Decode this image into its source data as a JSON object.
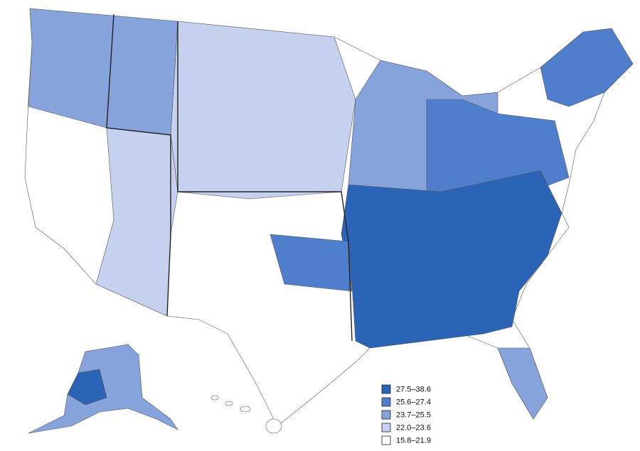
{
  "legend": {
    "items": [
      {
        "label": "27.5–38.6",
        "color": "#2b63b6"
      },
      {
        "label": "25.6–27.4",
        "color": "#4f7fcc"
      },
      {
        "label": "23.7–25.5",
        "color": "#87a3dc"
      },
      {
        "label": "22.0–23.6",
        "color": "#c6d1ef"
      },
      {
        "label": "15.8–21.9",
        "color": "#ffffff"
      }
    ]
  }
}
